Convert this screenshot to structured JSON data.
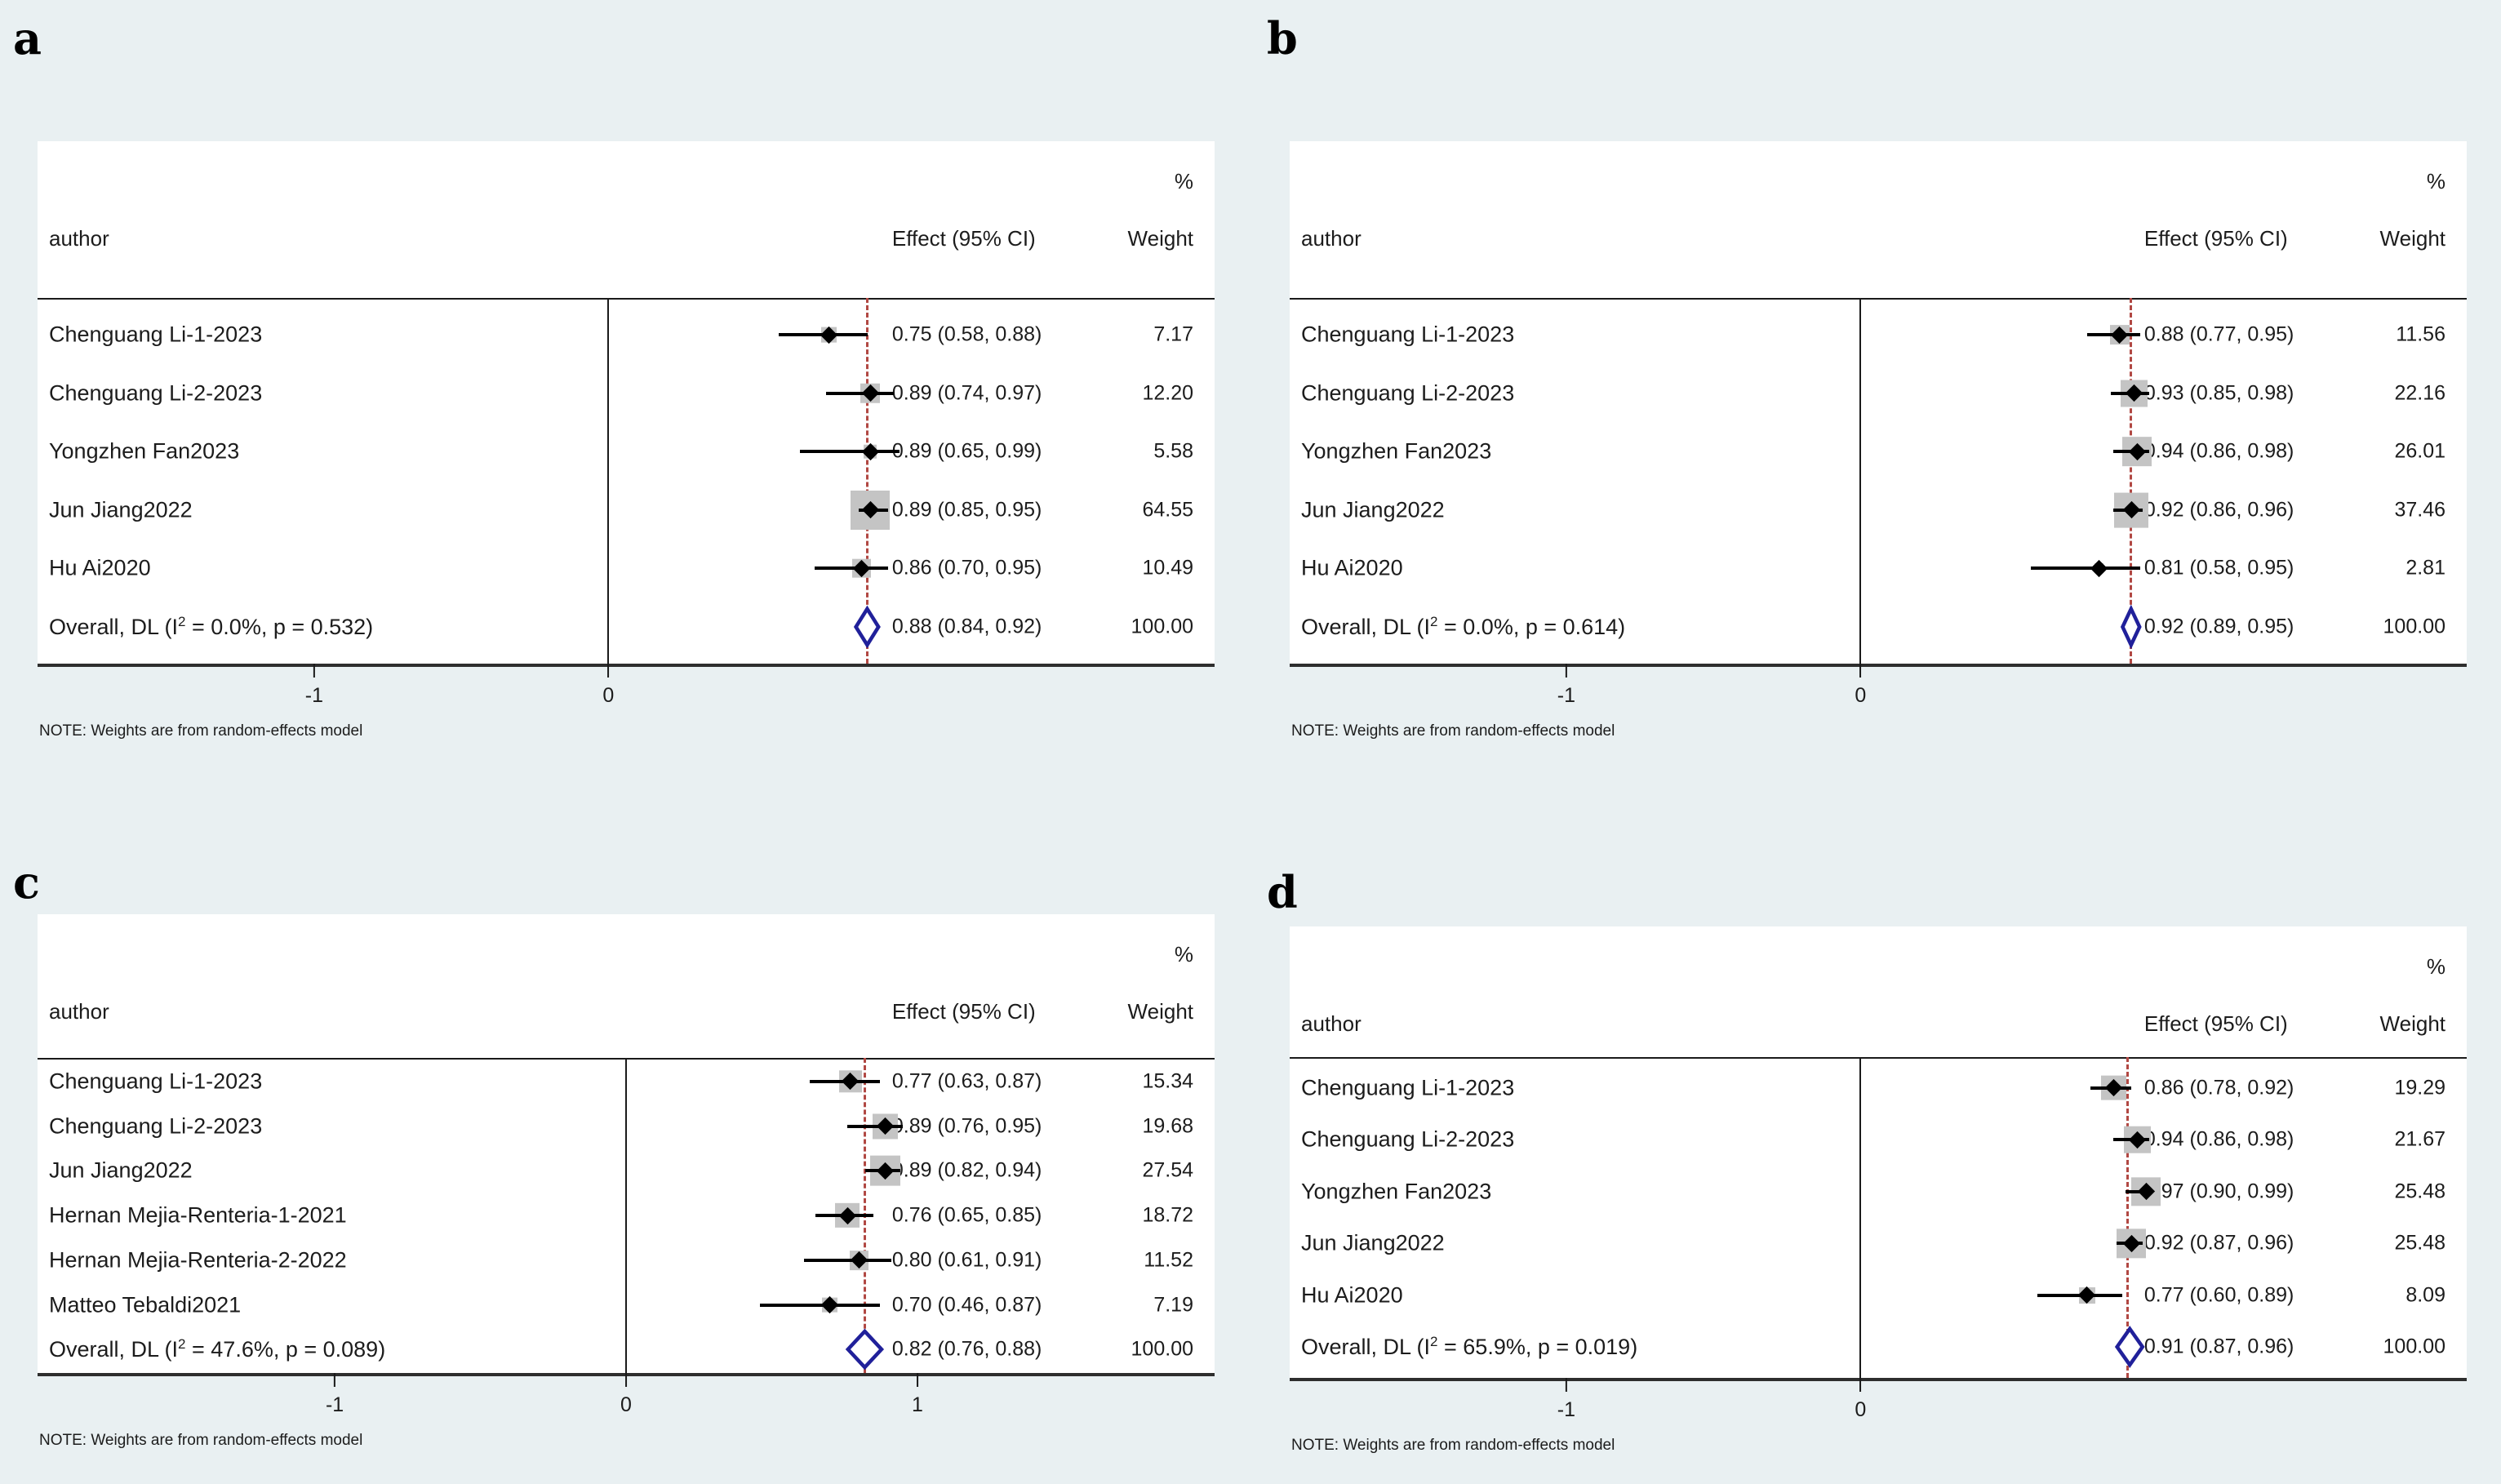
{
  "figure": {
    "background_color": "#e9f0f2",
    "plot_background": "#ffffff",
    "dashed_line_color": "#b14843",
    "diamond_color": "#20209a",
    "weight_box_color": "#c4c4c4",
    "ci_line_color": "#000000"
  },
  "chart_data": [
    {
      "type": "forest",
      "label": "a",
      "columns": {
        "author": "author",
        "effect": "Effect (95% CI)",
        "weight_pct": "%",
        "weight": "Weight"
      },
      "note": "NOTE: Weights are from random-effects model",
      "axis": {
        "min": -1.94,
        "max": 2.06,
        "ticks": [
          {
            "v": -1,
            "label": "-1"
          },
          {
            "v": 0,
            "label": "0"
          }
        ]
      },
      "studies": [
        {
          "author": "Chenguang Li-1-2023",
          "effect": 0.75,
          "ci_low": 0.58,
          "ci_high": 0.88,
          "effect_label": "0.75 (0.58, 0.88)",
          "weight": 7.17,
          "weight_label": "7.17"
        },
        {
          "author": "Chenguang Li-2-2023",
          "effect": 0.89,
          "ci_low": 0.74,
          "ci_high": 0.97,
          "effect_label": "0.89 (0.74, 0.97)",
          "weight": 12.2,
          "weight_label": "12.20"
        },
        {
          "author": "Yongzhen Fan2023",
          "effect": 0.89,
          "ci_low": 0.65,
          "ci_high": 0.99,
          "effect_label": "0.89 (0.65, 0.99)",
          "weight": 5.58,
          "weight_label": "5.58"
        },
        {
          "author": "Jun Jiang2022",
          "effect": 0.89,
          "ci_low": 0.85,
          "ci_high": 0.95,
          "effect_label": "0.89 (0.85, 0.95)",
          "weight": 64.55,
          "weight_label": "64.55"
        },
        {
          "author": "Hu Ai2020",
          "effect": 0.86,
          "ci_low": 0.7,
          "ci_high": 0.95,
          "effect_label": "0.86 (0.70, 0.95)",
          "weight": 10.49,
          "weight_label": "10.49"
        }
      ],
      "overall": {
        "label_prefix": "Overall, DL (I",
        "label_sup": "2",
        "label_suffix": " = 0.0%, p = 0.532)",
        "effect": 0.88,
        "ci_low": 0.84,
        "ci_high": 0.92,
        "effect_label": "0.88 (0.84, 0.92)",
        "weight_label": "100.00"
      }
    },
    {
      "type": "forest",
      "label": "b",
      "columns": {
        "author": "author",
        "effect": "Effect (95% CI)",
        "weight_pct": "%",
        "weight": "Weight"
      },
      "note": "NOTE: Weights are from random-effects model",
      "axis": {
        "min": -1.94,
        "max": 2.06,
        "ticks": [
          {
            "v": -1,
            "label": "-1"
          },
          {
            "v": 0,
            "label": "0"
          }
        ]
      },
      "studies": [
        {
          "author": "Chenguang Li-1-2023",
          "effect": 0.88,
          "ci_low": 0.77,
          "ci_high": 0.95,
          "effect_label": "0.88 (0.77, 0.95)",
          "weight": 11.56,
          "weight_label": "11.56"
        },
        {
          "author": "Chenguang Li-2-2023",
          "effect": 0.93,
          "ci_low": 0.85,
          "ci_high": 0.98,
          "effect_label": "0.93 (0.85, 0.98)",
          "weight": 22.16,
          "weight_label": "22.16"
        },
        {
          "author": "Yongzhen Fan2023",
          "effect": 0.94,
          "ci_low": 0.86,
          "ci_high": 0.98,
          "effect_label": "0.94 (0.86, 0.98)",
          "weight": 26.01,
          "weight_label": "26.01"
        },
        {
          "author": "Jun Jiang2022",
          "effect": 0.92,
          "ci_low": 0.86,
          "ci_high": 0.96,
          "effect_label": "0.92 (0.86, 0.96)",
          "weight": 37.46,
          "weight_label": "37.46"
        },
        {
          "author": "Hu Ai2020",
          "effect": 0.81,
          "ci_low": 0.58,
          "ci_high": 0.95,
          "effect_label": "0.81 (0.58, 0.95)",
          "weight": 2.81,
          "weight_label": "2.81"
        }
      ],
      "overall": {
        "label_prefix": "Overall, DL (I",
        "label_sup": "2",
        "label_suffix": " = 0.0%, p = 0.614)",
        "effect": 0.92,
        "ci_low": 0.89,
        "ci_high": 0.95,
        "effect_label": "0.92 (0.89, 0.95)",
        "weight_label": "100.00"
      }
    },
    {
      "type": "forest",
      "label": "c",
      "columns": {
        "author": "author",
        "effect": "Effect (95% CI)",
        "weight_pct": "%",
        "weight": "Weight"
      },
      "note": "NOTE: Weights are from random-effects model",
      "axis": {
        "min": -2.02,
        "max": 2.02,
        "ticks": [
          {
            "v": -1,
            "label": "-1"
          },
          {
            "v": 0,
            "label": "0"
          },
          {
            "v": 1,
            "label": "1"
          }
        ]
      },
      "studies": [
        {
          "author": "Chenguang Li-1-2023",
          "effect": 0.77,
          "ci_low": 0.63,
          "ci_high": 0.87,
          "effect_label": "0.77 (0.63, 0.87)",
          "weight": 15.34,
          "weight_label": "15.34"
        },
        {
          "author": "Chenguang Li-2-2023",
          "effect": 0.89,
          "ci_low": 0.76,
          "ci_high": 0.95,
          "effect_label": "0.89 (0.76, 0.95)",
          "weight": 19.68,
          "weight_label": "19.68"
        },
        {
          "author": "Jun Jiang2022",
          "effect": 0.89,
          "ci_low": 0.82,
          "ci_high": 0.94,
          "effect_label": "0.89 (0.82, 0.94)",
          "weight": 27.54,
          "weight_label": "27.54"
        },
        {
          "author": "Hernan Mejia-Renteria-1-2021",
          "effect": 0.76,
          "ci_low": 0.65,
          "ci_high": 0.85,
          "effect_label": "0.76 (0.65, 0.85)",
          "weight": 18.72,
          "weight_label": "18.72"
        },
        {
          "author": "Hernan Mejia-Renteria-2-2022",
          "effect": 0.8,
          "ci_low": 0.61,
          "ci_high": 0.91,
          "effect_label": "0.80 (0.61, 0.91)",
          "weight": 11.52,
          "weight_label": "11.52"
        },
        {
          "author": "Matteo Tebaldi2021",
          "effect": 0.7,
          "ci_low": 0.46,
          "ci_high": 0.87,
          "effect_label": "0.70 (0.46, 0.87)",
          "weight": 7.19,
          "weight_label": "7.19"
        }
      ],
      "overall": {
        "label_prefix": "Overall, DL (I",
        "label_sup": "2",
        "label_suffix": " = 47.6%, p = 0.089)",
        "effect": 0.82,
        "ci_low": 0.76,
        "ci_high": 0.88,
        "effect_label": "0.82 (0.76, 0.88)",
        "weight_label": "100.00"
      }
    },
    {
      "type": "forest",
      "label": "d",
      "columns": {
        "author": "author",
        "effect": "Effect (95% CI)",
        "weight_pct": "%",
        "weight": "Weight"
      },
      "note": "NOTE: Weights are from random-effects model",
      "axis": {
        "min": -1.94,
        "max": 2.06,
        "ticks": [
          {
            "v": -1,
            "label": "-1"
          },
          {
            "v": 0,
            "label": "0"
          }
        ]
      },
      "studies": [
        {
          "author": "Chenguang Li-1-2023",
          "effect": 0.86,
          "ci_low": 0.78,
          "ci_high": 0.92,
          "effect_label": "0.86 (0.78, 0.92)",
          "weight": 19.29,
          "weight_label": "19.29"
        },
        {
          "author": "Chenguang Li-2-2023",
          "effect": 0.94,
          "ci_low": 0.86,
          "ci_high": 0.98,
          "effect_label": "0.94 (0.86, 0.98)",
          "weight": 21.67,
          "weight_label": "21.67"
        },
        {
          "author": "Yongzhen Fan2023",
          "effect": 0.97,
          "ci_low": 0.9,
          "ci_high": 0.99,
          "effect_label": "0.97 (0.90, 0.99)",
          "weight": 25.48,
          "weight_label": "25.48"
        },
        {
          "author": "Jun Jiang2022",
          "effect": 0.92,
          "ci_low": 0.87,
          "ci_high": 0.96,
          "effect_label": "0.92 (0.87, 0.96)",
          "weight": 25.48,
          "weight_label": "25.48"
        },
        {
          "author": "Hu Ai2020",
          "effect": 0.77,
          "ci_low": 0.6,
          "ci_high": 0.89,
          "effect_label": "0.77 (0.60, 0.89)",
          "weight": 8.09,
          "weight_label": "8.09"
        }
      ],
      "overall": {
        "label_prefix": "Overall, DL (I",
        "label_sup": "2",
        "label_suffix": " = 65.9%, p = 0.019)",
        "effect": 0.91,
        "ci_low": 0.87,
        "ci_high": 0.96,
        "effect_label": "0.91 (0.87, 0.96)",
        "weight_label": "100.00"
      }
    }
  ]
}
